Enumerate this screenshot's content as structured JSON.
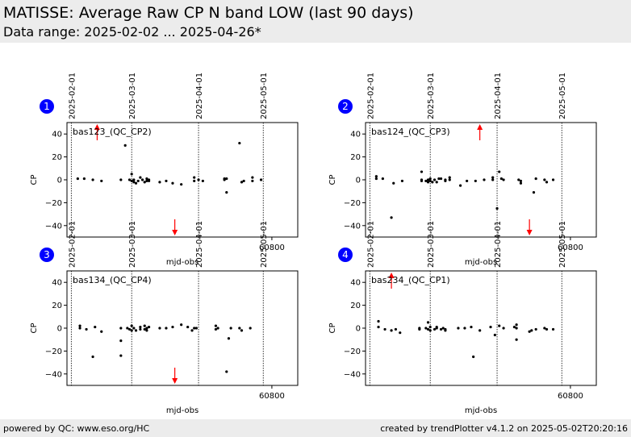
{
  "header": {
    "title": "MATISSE: Average Raw CP N band LOW (last 90 days)",
    "subtitle": "Data range: 2025-02-02 ... 2025-04-26*"
  },
  "footer": {
    "left": "powered by QC: www.eso.org/HC",
    "right": "created by trendPlotter v4.1.2 on 2025-05-02T20:20:16"
  },
  "colors": {
    "points": "#000000",
    "outliers": "#ff0000",
    "badge": "#0000ff",
    "header_bg": "#ececec"
  },
  "chart_data": [
    {
      "type": "scatter",
      "panel_number": "1",
      "label": "bas123_(QC_CP2)",
      "xlabel": "mjd-obs",
      "ylabel": "CP",
      "xlim": [
        60705,
        60812
      ],
      "ylim": [
        -50,
        50
      ],
      "yticks": [
        -40,
        -20,
        0,
        20,
        40
      ],
      "xticks": [
        60800
      ],
      "date_lines": [
        {
          "label": "2025-02-01",
          "x": 60707
        },
        {
          "label": "2025-03-01",
          "x": 60735
        },
        {
          "label": "2025-04-01",
          "x": 60766
        },
        {
          "label": "2025-05-01",
          "x": 60796
        }
      ],
      "points": [
        [
          60710,
          1
        ],
        [
          60713,
          1
        ],
        [
          60717,
          0
        ],
        [
          60721,
          -1
        ],
        [
          60730,
          0
        ],
        [
          60732,
          30
        ],
        [
          60734,
          0
        ],
        [
          60735,
          5
        ],
        [
          60735,
          -1
        ],
        [
          60736,
          -2
        ],
        [
          60736,
          0
        ],
        [
          60737,
          -3
        ],
        [
          60738,
          -1
        ],
        [
          60739,
          2
        ],
        [
          60740,
          0
        ],
        [
          60741,
          -2
        ],
        [
          60742,
          -1
        ],
        [
          60742,
          1
        ],
        [
          60743,
          0
        ],
        [
          60743,
          -1
        ],
        [
          60748,
          -2
        ],
        [
          60751,
          -1
        ],
        [
          60754,
          -3
        ],
        [
          60758,
          -4
        ],
        [
          60764,
          2
        ],
        [
          60764,
          -1
        ],
        [
          60766,
          0
        ],
        [
          60768,
          -1
        ],
        [
          60778,
          0
        ],
        [
          60778,
          1
        ],
        [
          60779,
          -11
        ],
        [
          60779,
          1
        ],
        [
          60786,
          -2
        ],
        [
          60787,
          -1
        ],
        [
          60791,
          2
        ],
        [
          60791,
          -1
        ],
        [
          60795,
          0
        ],
        [
          60785,
          32
        ]
      ],
      "outliers": [
        {
          "x": 60719,
          "direction": "up"
        },
        {
          "x": 60755,
          "direction": "down"
        }
      ]
    },
    {
      "type": "scatter",
      "panel_number": "2",
      "label": "bas124_(QC_CP3)",
      "xlabel": "mjd-obs",
      "ylabel": "CP",
      "xlim": [
        60705,
        60812
      ],
      "ylim": [
        -50,
        50
      ],
      "yticks": [
        -40,
        -20,
        0,
        20,
        40
      ],
      "xticks": [
        60800
      ],
      "date_lines": [
        {
          "label": "2025-02-01",
          "x": 60707
        },
        {
          "label": "2025-03-01",
          "x": 60735
        },
        {
          "label": "2025-04-01",
          "x": 60766
        },
        {
          "label": "2025-05-01",
          "x": 60796
        }
      ],
      "points": [
        [
          60710,
          3
        ],
        [
          60710,
          1
        ],
        [
          60713,
          1
        ],
        [
          60717,
          -33
        ],
        [
          60718,
          -3
        ],
        [
          60722,
          -1
        ],
        [
          60731,
          7
        ],
        [
          60731,
          0
        ],
        [
          60731,
          -1
        ],
        [
          60733,
          -1
        ],
        [
          60734,
          0
        ],
        [
          60734,
          -2
        ],
        [
          60735,
          1
        ],
        [
          60735,
          -1
        ],
        [
          60736,
          -2
        ],
        [
          60737,
          0
        ],
        [
          60738,
          -2
        ],
        [
          60739,
          1
        ],
        [
          60740,
          1
        ],
        [
          60742,
          0
        ],
        [
          60742,
          -1
        ],
        [
          60744,
          2
        ],
        [
          60744,
          0
        ],
        [
          60749,
          -5
        ],
        [
          60752,
          -1
        ],
        [
          60756,
          -1
        ],
        [
          60760,
          0
        ],
        [
          60764,
          2
        ],
        [
          60764,
          0
        ],
        [
          60766,
          -25
        ],
        [
          60767,
          7
        ],
        [
          60768,
          1
        ],
        [
          60769,
          0
        ],
        [
          60776,
          0
        ],
        [
          60777,
          -1
        ],
        [
          60777,
          -3
        ],
        [
          60783,
          -11
        ],
        [
          60784,
          1
        ],
        [
          60788,
          0
        ],
        [
          60789,
          -2
        ],
        [
          60792,
          0
        ]
      ],
      "outliers": [
        {
          "x": 60758,
          "direction": "up"
        },
        {
          "x": 60781,
          "direction": "down"
        }
      ]
    },
    {
      "type": "scatter",
      "panel_number": "3",
      "label": "bas134_(QC_CP4)",
      "xlabel": "mjd-obs",
      "ylabel": "CP",
      "xlim": [
        60705,
        60812
      ],
      "ylim": [
        -50,
        50
      ],
      "yticks": [
        -40,
        -20,
        0,
        20,
        40
      ],
      "xticks": [
        60800
      ],
      "date_lines": [
        {
          "label": "2025-02-01",
          "x": 60707
        },
        {
          "label": "2025-03-01",
          "x": 60735
        },
        {
          "label": "2025-04-01",
          "x": 60766
        },
        {
          "label": "2025-05-01",
          "x": 60796
        }
      ],
      "points": [
        [
          60711,
          2
        ],
        [
          60711,
          0
        ],
        [
          60714,
          -1
        ],
        [
          60717,
          -25
        ],
        [
          60718,
          1
        ],
        [
          60721,
          -3
        ],
        [
          60730,
          -11
        ],
        [
          60730,
          -24
        ],
        [
          60730,
          0
        ],
        [
          60733,
          0
        ],
        [
          60734,
          -1
        ],
        [
          60735,
          2
        ],
        [
          60735,
          -2
        ],
        [
          60736,
          0
        ],
        [
          60737,
          -2
        ],
        [
          60739,
          1
        ],
        [
          60739,
          -1
        ],
        [
          60741,
          2
        ],
        [
          60741,
          -1
        ],
        [
          60742,
          0
        ],
        [
          60742,
          -2
        ],
        [
          60743,
          1
        ],
        [
          60748,
          0
        ],
        [
          60751,
          0
        ],
        [
          60754,
          1
        ],
        [
          60758,
          3
        ],
        [
          60761,
          1
        ],
        [
          60763,
          -2
        ],
        [
          60764,
          0
        ],
        [
          60765,
          0
        ],
        [
          60774,
          -1
        ],
        [
          60774,
          2
        ],
        [
          60775,
          0
        ],
        [
          60779,
          -38
        ],
        [
          60780,
          -9
        ],
        [
          60781,
          0
        ],
        [
          60785,
          0
        ],
        [
          60786,
          -2
        ],
        [
          60790,
          0
        ]
      ],
      "outliers": [
        {
          "x": 60755,
          "direction": "down"
        }
      ]
    },
    {
      "type": "scatter",
      "panel_number": "4",
      "label": "bas234_(QC_CP1)",
      "xlabel": "mjd-obs",
      "ylabel": "CP",
      "xlim": [
        60705,
        60812
      ],
      "ylim": [
        -50,
        50
      ],
      "yticks": [
        -40,
        -20,
        0,
        20,
        40
      ],
      "xticks": [
        60800
      ],
      "date_lines": [
        {
          "label": "2025-02-01",
          "x": 60707
        },
        {
          "label": "2025-03-01",
          "x": 60735
        },
        {
          "label": "2025-04-01",
          "x": 60766
        },
        {
          "label": "2025-05-01",
          "x": 60796
        }
      ],
      "points": [
        [
          60711,
          6
        ],
        [
          60711,
          1
        ],
        [
          60714,
          -1
        ],
        [
          60717,
          -2
        ],
        [
          60719,
          -1
        ],
        [
          60721,
          -4
        ],
        [
          60730,
          -1
        ],
        [
          60730,
          0
        ],
        [
          60733,
          0
        ],
        [
          60734,
          5
        ],
        [
          60734,
          -1
        ],
        [
          60735,
          1
        ],
        [
          60735,
          -2
        ],
        [
          60737,
          -1
        ],
        [
          60738,
          1
        ],
        [
          60738,
          0
        ],
        [
          60740,
          -1
        ],
        [
          60741,
          0
        ],
        [
          60742,
          -2
        ],
        [
          60742,
          -1
        ],
        [
          60748,
          0
        ],
        [
          60751,
          0
        ],
        [
          60754,
          1
        ],
        [
          60755,
          -25
        ],
        [
          60758,
          -2
        ],
        [
          60763,
          1
        ],
        [
          60765,
          -6
        ],
        [
          60767,
          2
        ],
        [
          60769,
          0
        ],
        [
          60774,
          1
        ],
        [
          60775,
          3
        ],
        [
          60775,
          -10
        ],
        [
          60775,
          0
        ],
        [
          60781,
          -3
        ],
        [
          60782,
          -2
        ],
        [
          60784,
          -1
        ],
        [
          60788,
          0
        ],
        [
          60789,
          -1
        ],
        [
          60792,
          -1
        ]
      ],
      "outliers": [
        {
          "x": 60717,
          "direction": "up"
        }
      ]
    }
  ]
}
